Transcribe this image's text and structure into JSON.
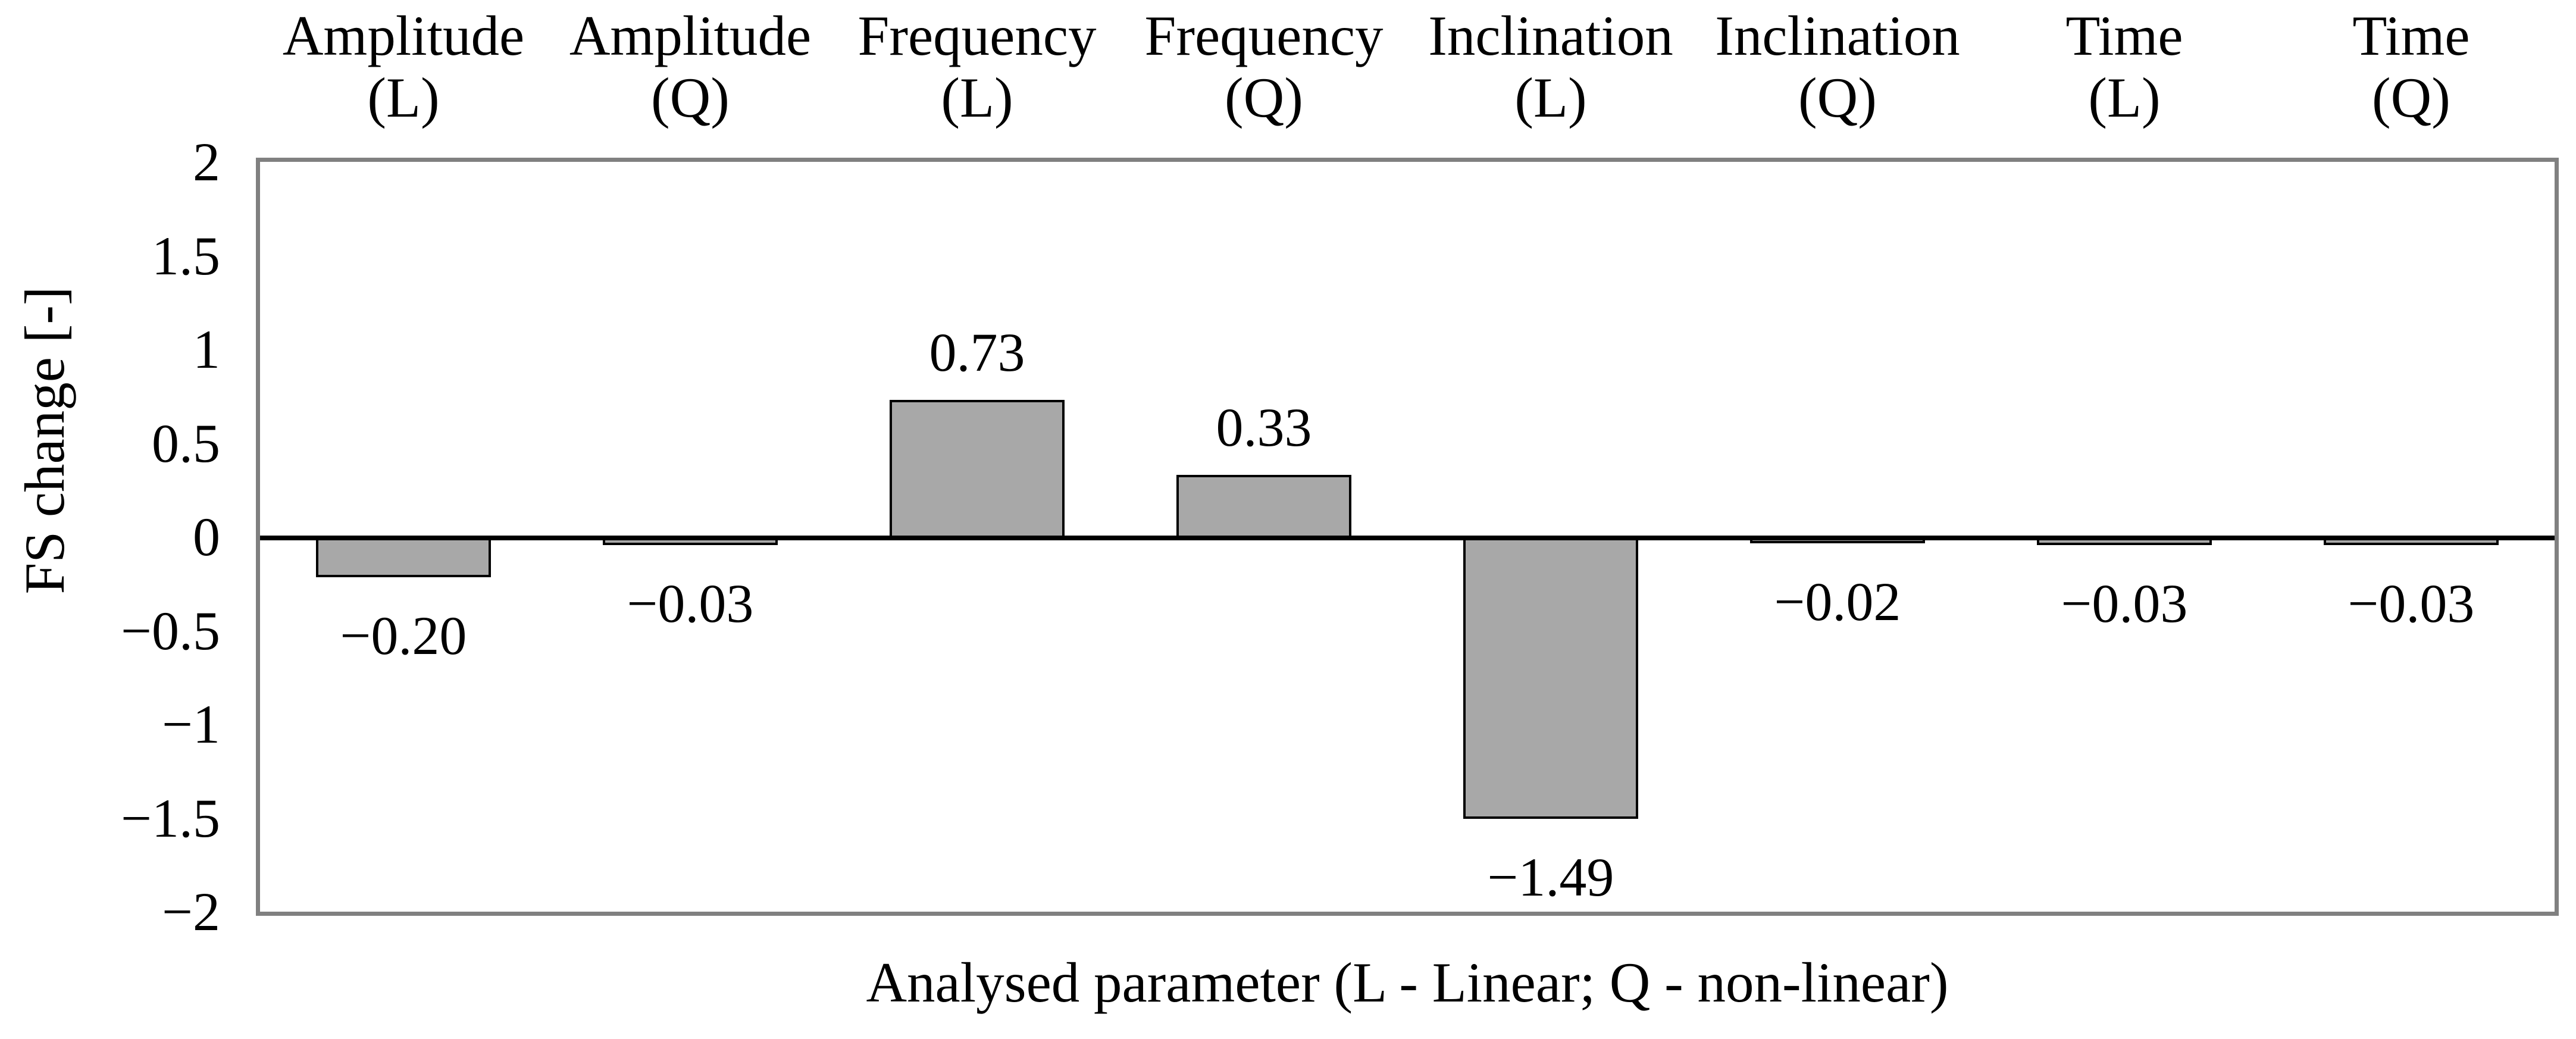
{
  "figure": {
    "background_color": "#FFFFFF",
    "text_color": "#000000"
  },
  "chart_data": {
    "type": "bar",
    "title": "",
    "xlabel": "Analysed parameter (L - Linear; Q - non-linear)",
    "ylabel": "FS change [-]",
    "categories": [
      {
        "name": "Amplitude",
        "qualifier": "(L)"
      },
      {
        "name": "Amplitude",
        "qualifier": "(Q)"
      },
      {
        "name": "Frequency",
        "qualifier": "(L)"
      },
      {
        "name": "Frequency",
        "qualifier": "(Q)"
      },
      {
        "name": "Inclination",
        "qualifier": "(L)"
      },
      {
        "name": "Inclination",
        "qualifier": "(Q)"
      },
      {
        "name": "Time",
        "qualifier": "(L)"
      },
      {
        "name": "Time",
        "qualifier": "(Q)"
      }
    ],
    "values": [
      -0.2,
      -0.03,
      0.73,
      0.33,
      -1.49,
      -0.02,
      -0.03,
      -0.03
    ],
    "value_labels": [
      "−0.20",
      "−0.03",
      "0.73",
      "0.33",
      "−1.49",
      "−0.02",
      "−0.03",
      "−0.03"
    ],
    "ylim": [
      -2,
      2
    ],
    "y_ticks": [
      2,
      1.5,
      1,
      0.5,
      0,
      -0.5,
      -1,
      -1.5,
      -2
    ],
    "y_tick_labels": [
      "2",
      "1.5",
      "1",
      "0.5",
      "0",
      "−0.5",
      "−1",
      "−1.5",
      "−2"
    ],
    "grid": false,
    "legend_position": "none",
    "bar_fill_color": "#A8A8A8",
    "bar_border_color": "#000000",
    "plot_border_color": "#808080",
    "zero_line_color": "#000000"
  }
}
